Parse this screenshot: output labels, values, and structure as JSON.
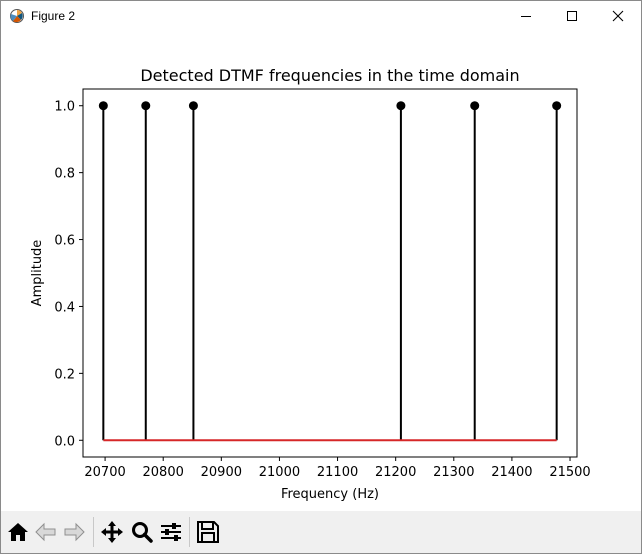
{
  "window": {
    "title": "Figure 2"
  },
  "toolbar": {
    "buttons": [
      {
        "name": "home-icon",
        "tooltip": "Home"
      },
      {
        "name": "back-icon",
        "tooltip": "Back"
      },
      {
        "name": "forward-icon",
        "tooltip": "Forward"
      },
      {
        "name": "pan-icon",
        "tooltip": "Pan"
      },
      {
        "name": "zoom-icon",
        "tooltip": "Zoom"
      },
      {
        "name": "configure-subplots-icon",
        "tooltip": "Subplots"
      },
      {
        "name": "save-icon",
        "tooltip": "Save"
      }
    ]
  },
  "chart_data": {
    "type": "stem",
    "title": "Detected DTMF frequencies in the time domain",
    "xlabel": "Frequency (Hz)",
    "ylabel": "Amplitude",
    "x": [
      20697,
      20770,
      20852,
      21209,
      21336,
      21477
    ],
    "values": [
      1.0,
      1.0,
      1.0,
      1.0,
      1.0,
      1.0
    ],
    "xlim": [
      20662,
      21512
    ],
    "ylim": [
      -0.05,
      1.05
    ],
    "xticks": [
      20700,
      20800,
      20900,
      21000,
      21100,
      21200,
      21300,
      21400,
      21500
    ],
    "yticks": [
      0.0,
      0.2,
      0.4,
      0.6,
      0.8,
      1.0
    ],
    "xtick_labels": [
      "20700",
      "20800",
      "20900",
      "21000",
      "21100",
      "21200",
      "21300",
      "21400",
      "21500"
    ],
    "ytick_labels": [
      "0.0",
      "0.2",
      "0.4",
      "0.6",
      "0.8",
      "1.0"
    ],
    "grid": false,
    "colors": {
      "stem": "#000000",
      "baseline": "#d62728"
    }
  }
}
